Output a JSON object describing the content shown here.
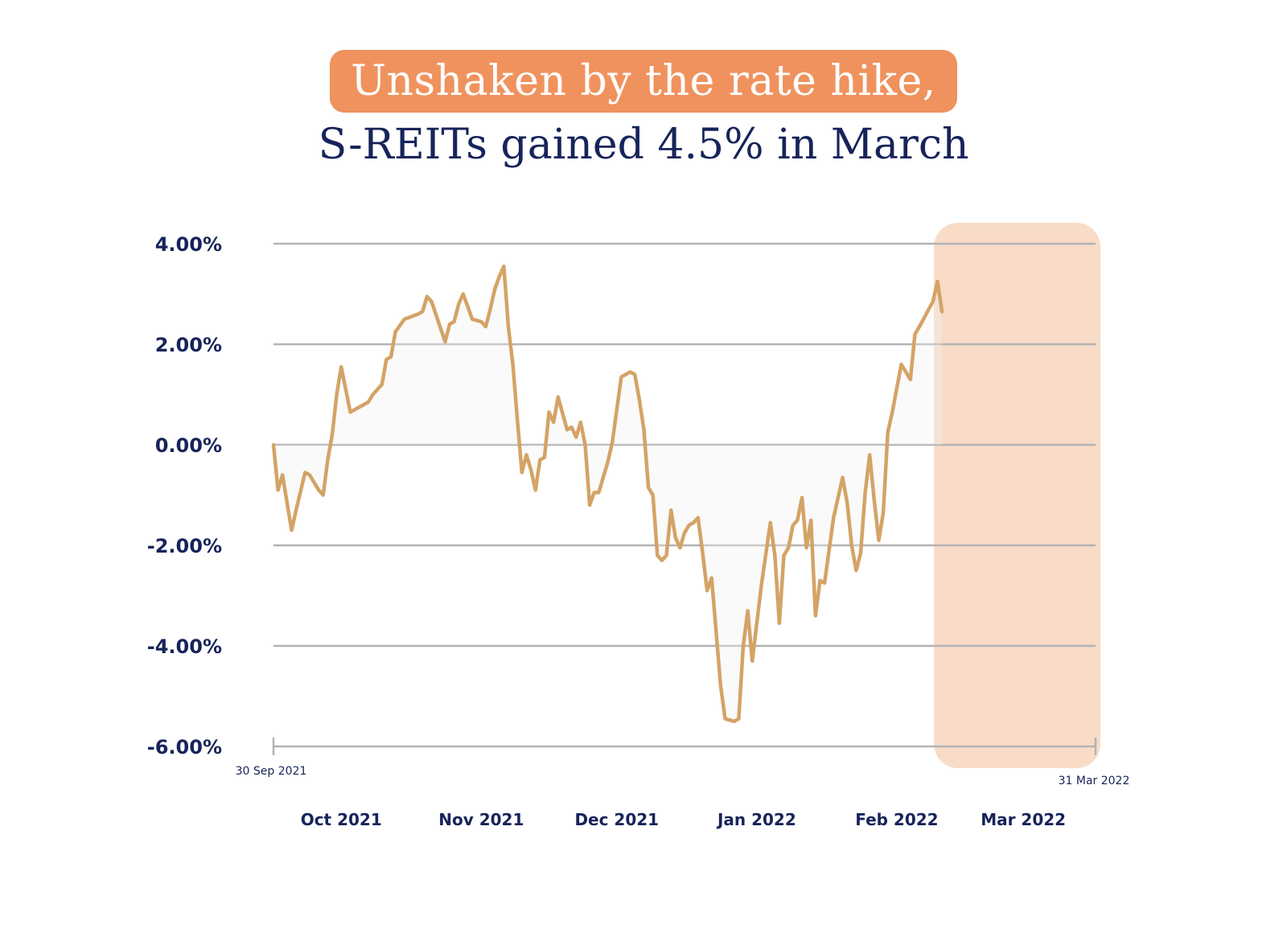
{
  "header": {
    "title": "Unshaken by the rate hike,",
    "subtitle": "S-REITs gained 4.5% in March"
  },
  "colors": {
    "line": "#d4a366",
    "highlight": "#f8dcc7",
    "title_bg": "#f0925d",
    "text": "#17245a",
    "grid": "#b3b3b3"
  },
  "chart_data": {
    "type": "line",
    "title": "Unshaken by the rate hike, S-REITs gained 4.5% in March",
    "ylabel": "",
    "xlabel": "",
    "ylim": [
      -6,
      4
    ],
    "yticks": [
      4,
      2,
      0,
      -2,
      -4,
      -6
    ],
    "ytick_labels": [
      "4.00%",
      "2.00%",
      "0.00%",
      "-2.00%",
      "-4.00%",
      "-6.00%"
    ],
    "x_start": "2021-09-30",
    "x_end": "2022-03-31",
    "start_label": "30 Sep 2021",
    "end_label": "31 Mar 2022",
    "month_ticks": [
      {
        "label": "Oct 2021",
        "date": "2021-10-15"
      },
      {
        "label": "Nov 2021",
        "date": "2021-11-15"
      },
      {
        "label": "Dec 2021",
        "date": "2021-12-15"
      },
      {
        "label": "Jan 2022",
        "date": "2022-01-15"
      },
      {
        "label": "Feb 2022",
        "date": "2022-02-15"
      },
      {
        "label": "Mar 2022",
        "date": "2022-03-15"
      }
    ],
    "highlight_period": [
      "2022-02-25",
      "2022-03-31"
    ],
    "series": [
      {
        "points": [
          [
            "2021-09-30",
            0.0
          ],
          [
            "2021-10-01",
            -0.9
          ],
          [
            "2021-10-02",
            -0.6
          ],
          [
            "2021-10-04",
            -1.7
          ],
          [
            "2021-10-05",
            -1.3
          ],
          [
            "2021-10-07",
            -0.55
          ],
          [
            "2021-10-08",
            -0.6
          ],
          [
            "2021-10-10",
            -0.9
          ],
          [
            "2021-10-11",
            -1.0
          ],
          [
            "2021-10-12",
            -0.3
          ],
          [
            "2021-10-13",
            0.2
          ],
          [
            "2021-10-14",
            1.0
          ],
          [
            "2021-10-15",
            1.55
          ],
          [
            "2021-10-17",
            0.65
          ],
          [
            "2021-10-21",
            0.85
          ],
          [
            "2021-10-22",
            1.0
          ],
          [
            "2021-10-24",
            1.2
          ],
          [
            "2021-10-25",
            1.7
          ],
          [
            "2021-10-26",
            1.75
          ],
          [
            "2021-10-27",
            2.25
          ],
          [
            "2021-10-29",
            2.5
          ],
          [
            "2021-11-01",
            2.6
          ],
          [
            "2021-11-02",
            2.65
          ],
          [
            "2021-11-03",
            2.95
          ],
          [
            "2021-11-04",
            2.85
          ],
          [
            "2021-11-07",
            2.05
          ],
          [
            "2021-11-08",
            2.4
          ],
          [
            "2021-11-09",
            2.45
          ],
          [
            "2021-11-10",
            2.8
          ],
          [
            "2021-11-11",
            3.0
          ],
          [
            "2021-11-12",
            2.75
          ],
          [
            "2021-11-13",
            2.5
          ],
          [
            "2021-11-15",
            2.45
          ],
          [
            "2021-11-16",
            2.35
          ],
          [
            "2021-11-17",
            2.7
          ],
          [
            "2021-11-18",
            3.1
          ],
          [
            "2021-11-19",
            3.35
          ],
          [
            "2021-11-20",
            3.55
          ],
          [
            "2021-11-21",
            2.35
          ],
          [
            "2021-11-22",
            1.6
          ],
          [
            "2021-11-23",
            0.5
          ],
          [
            "2021-11-24",
            -0.55
          ],
          [
            "2021-11-25",
            -0.2
          ],
          [
            "2021-11-26",
            -0.5
          ],
          [
            "2021-11-27",
            -0.9
          ],
          [
            "2021-11-28",
            -0.3
          ],
          [
            "2021-11-29",
            -0.25
          ],
          [
            "2021-11-30",
            0.65
          ],
          [
            "2021-12-01",
            0.45
          ],
          [
            "2021-12-02",
            0.95
          ],
          [
            "2021-12-04",
            0.3
          ],
          [
            "2021-12-05",
            0.35
          ],
          [
            "2021-12-06",
            0.15
          ],
          [
            "2021-12-07",
            0.45
          ],
          [
            "2021-12-08",
            0.0
          ],
          [
            "2021-12-09",
            -1.2
          ],
          [
            "2021-12-10",
            -0.95
          ],
          [
            "2021-12-11",
            -0.95
          ],
          [
            "2021-12-13",
            -0.35
          ],
          [
            "2021-12-14",
            0.05
          ],
          [
            "2021-12-15",
            0.7
          ],
          [
            "2021-12-16",
            1.35
          ],
          [
            "2021-12-17",
            1.4
          ],
          [
            "2021-12-18",
            1.45
          ],
          [
            "2021-12-19",
            1.4
          ],
          [
            "2021-12-20",
            0.9
          ],
          [
            "2021-12-21",
            0.3
          ],
          [
            "2021-12-22",
            -0.85
          ],
          [
            "2021-12-23",
            -1.0
          ],
          [
            "2021-12-24",
            -2.2
          ],
          [
            "2021-12-25",
            -2.3
          ],
          [
            "2021-12-26",
            -2.2
          ],
          [
            "2021-12-27",
            -1.3
          ],
          [
            "2021-12-28",
            -1.85
          ],
          [
            "2021-12-29",
            -2.05
          ],
          [
            "2021-12-30",
            -1.75
          ],
          [
            "2021-12-31",
            -1.6
          ],
          [
            "2022-01-01",
            -1.55
          ],
          [
            "2022-01-02",
            -1.45
          ],
          [
            "2022-01-03",
            -2.15
          ],
          [
            "2022-01-04",
            -2.9
          ],
          [
            "2022-01-05",
            -2.65
          ],
          [
            "2022-01-07",
            -4.8
          ],
          [
            "2022-01-08",
            -5.45
          ],
          [
            "2022-01-10",
            -5.5
          ],
          [
            "2022-01-11",
            -5.45
          ],
          [
            "2022-01-12",
            -4.0
          ],
          [
            "2022-01-13",
            -3.3
          ],
          [
            "2022-01-14",
            -4.3
          ],
          [
            "2022-01-16",
            -2.8
          ],
          [
            "2022-01-18",
            -1.55
          ],
          [
            "2022-01-19",
            -2.2
          ],
          [
            "2022-01-20",
            -3.55
          ],
          [
            "2022-01-21",
            -2.2
          ],
          [
            "2022-01-22",
            -2.05
          ],
          [
            "2022-01-23",
            -1.6
          ],
          [
            "2022-01-24",
            -1.5
          ],
          [
            "2022-01-25",
            -1.05
          ],
          [
            "2022-01-26",
            -2.05
          ],
          [
            "2022-01-27",
            -1.5
          ],
          [
            "2022-01-28",
            -3.4
          ],
          [
            "2022-01-29",
            -2.7
          ],
          [
            "2022-01-30",
            -2.75
          ],
          [
            "2022-02-01",
            -1.45
          ],
          [
            "2022-02-03",
            -0.65
          ],
          [
            "2022-02-04",
            -1.15
          ],
          [
            "2022-02-05",
            -2.0
          ],
          [
            "2022-02-06",
            -2.5
          ],
          [
            "2022-02-07",
            -2.15
          ],
          [
            "2022-02-08",
            -0.95
          ],
          [
            "2022-02-09",
            -0.2
          ],
          [
            "2022-02-10",
            -1.1
          ],
          [
            "2022-02-11",
            -1.9
          ],
          [
            "2022-02-12",
            -1.35
          ],
          [
            "2022-02-13",
            0.25
          ],
          [
            "2022-02-14",
            0.65
          ],
          [
            "2022-02-16",
            1.6
          ],
          [
            "2022-02-18",
            1.3
          ],
          [
            "2022-02-19",
            2.2
          ],
          [
            "2022-02-20",
            2.35
          ],
          [
            "2022-02-23",
            2.85
          ],
          [
            "2022-02-24",
            3.25
          ],
          [
            "2022-02-25",
            2.65
          ]
        ]
      }
    ]
  }
}
